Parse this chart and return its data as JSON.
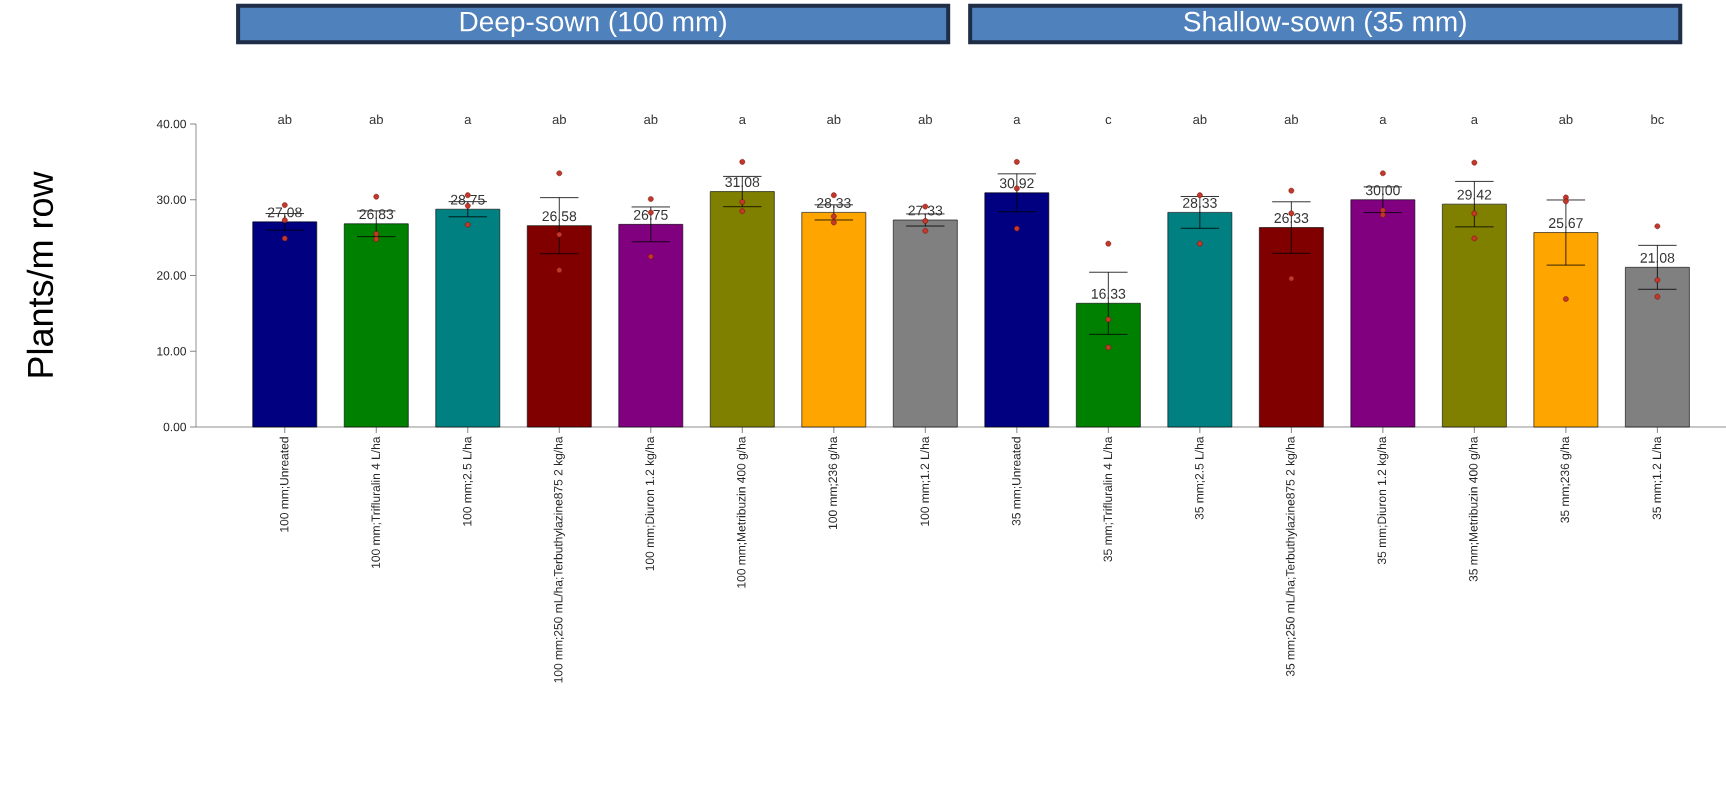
{
  "chart_data": {
    "type": "bar",
    "ylabel": "Plants/m row",
    "categories": [
      "100 mm;Unreated",
      "100 mm;Trifluralin 4 L/ha",
      "100 mm;2.5 L/ha",
      "100 mm;250 mL/ha;Terbuthylazine875 2 kg/ha",
      "100 mm;Diuron 1.2 kg/ha",
      "100 mm;Metribuzin 400 g/ha",
      "100 mm;236 g/ha",
      "100 mm;1.2 L/ha",
      "35 mm;Unreated",
      "35 mm;Trifluralin 4 L/ha",
      "35 mm;2.5 L/ha",
      "35 mm;250 mL/ha;Terbuthylazine875 2 kg/ha",
      "35 mm;Diuron 1.2 kg/ha",
      "35 mm;Metribuzin 400 g/ha",
      "35 mm;236 g/ha",
      "35 mm;1.2 L/ha"
    ],
    "series": [
      {
        "type": "bar",
        "values": [
          27.08,
          26.83,
          28.75,
          26.58,
          26.75,
          31.08,
          28.33,
          27.33,
          30.92,
          16.33,
          28.33,
          26.33,
          30.0,
          29.42,
          25.67,
          21.08
        ],
        "value_labels": [
          "27.08",
          "26.83",
          "28.75",
          "26.58",
          "26.75",
          "31.08",
          "28.33",
          "27.33",
          "30.92",
          "16.33",
          "28.33",
          "26.33",
          "30.00",
          "29.42",
          "25.67",
          "21.08"
        ],
        "errors": [
          1.1,
          1.7,
          1.0,
          3.7,
          2.3,
          2.0,
          1.0,
          0.8,
          2.5,
          4.1,
          2.1,
          3.4,
          1.7,
          3.0,
          4.3,
          2.9
        ],
        "colors": [
          "#000080",
          "#008000",
          "#008080",
          "#800000",
          "#800080",
          "#808000",
          "#ffa500",
          "#808080",
          "#000080",
          "#008000",
          "#008080",
          "#800000",
          "#800080",
          "#808000",
          "#ffa500",
          "#808080"
        ]
      },
      {
        "type": "scatter",
        "color": "#c0392b",
        "x": [
          "100 mm;Unreated",
          "100 mm;Unreated",
          "100 mm;Unreated",
          "100 mm;Trifluralin 4 L/ha",
          "100 mm;Trifluralin 4 L/ha",
          "100 mm;Trifluralin 4 L/ha",
          "100 mm;2.5 L/ha",
          "100 mm;2.5 L/ha",
          "100 mm;2.5 L/ha",
          "100 mm;250 mL/ha;Terbuthylazine875 2 kg/ha",
          "100 mm;250 mL/ha;Terbuthylazine875 2 kg/ha",
          "100 mm;250 mL/ha;Terbuthylazine875 2 kg/ha",
          "100 mm;Diuron 1.2 kg/ha",
          "100 mm;Diuron 1.2 kg/ha",
          "100 mm;Diuron 1.2 kg/ha",
          "100 mm;Metribuzin 400 g/ha",
          "100 mm;Metribuzin 400 g/ha",
          "100 mm;Metribuzin 400 g/ha",
          "100 mm;236 g/ha",
          "100 mm;236 g/ha",
          "100 mm;236 g/ha",
          "100 mm;1.2 L/ha",
          "100 mm;1.2 L/ha",
          "100 mm;1.2 L/ha",
          "35 mm;Unreated",
          "35 mm;Unreated",
          "35 mm;Unreated",
          "35 mm;Trifluralin 4 L/ha",
          "35 mm;Trifluralin 4 L/ha",
          "35 mm;Trifluralin 4 L/ha",
          "35 mm;2.5 L/ha",
          "35 mm;2.5 L/ha",
          "35 mm;250 mL/ha;Terbuthylazine875 2 kg/ha",
          "35 mm;250 mL/ha;Terbuthylazine875 2 kg/ha",
          "35 mm;250 mL/ha;Terbuthylazine875 2 kg/ha",
          "35 mm;Diuron 1.2 kg/ha",
          "35 mm;Diuron 1.2 kg/ha",
          "35 mm;Diuron 1.2 kg/ha",
          "35 mm;Metribuzin 400 g/ha",
          "35 mm;Metribuzin 400 g/ha",
          "35 mm;Metribuzin 400 g/ha",
          "35 mm;236 g/ha",
          "35 mm;236 g/ha",
          "35 mm;236 g/ha",
          "35 mm;1.2 L/ha",
          "35 mm;1.2 L/ha",
          "35 mm;1.2 L/ha"
        ],
        "values": [
          29.3,
          27.3,
          24.9,
          30.4,
          25.5,
          24.8,
          30.6,
          29.2,
          26.7,
          33.5,
          25.4,
          20.7,
          30.1,
          28.3,
          22.5,
          35.0,
          29.7,
          28.5,
          30.6,
          27.8,
          27.0,
          29.1,
          27.2,
          25.9,
          35.0,
          31.5,
          26.2,
          24.2,
          14.2,
          10.5,
          30.6,
          24.2,
          31.2,
          28.2,
          19.6,
          33.5,
          28.6,
          28.0,
          34.9,
          28.2,
          24.9,
          30.3,
          29.8,
          16.9,
          26.5,
          19.4,
          17.2
        ]
      }
    ],
    "marker": "circle",
    "ylim": [
      0,
      40
    ],
    "yticks": [
      {
        "value": 0,
        "label": "0.00"
      },
      {
        "value": 10,
        "label": "10.00"
      },
      {
        "value": 20,
        "label": "20.00"
      },
      {
        "value": 30,
        "label": "30.00"
      },
      {
        "value": 40,
        "label": "40.00"
      }
    ],
    "annotations": [
      "Deep-sown (100 mm)",
      "Shallow-sown (35 mm)",
      "ab",
      "ab",
      "a",
      "ab",
      "ab",
      "a",
      "ab",
      "ab",
      "a",
      "c",
      "ab",
      "ab",
      "a",
      "a",
      "ab",
      "bc"
    ]
  }
}
